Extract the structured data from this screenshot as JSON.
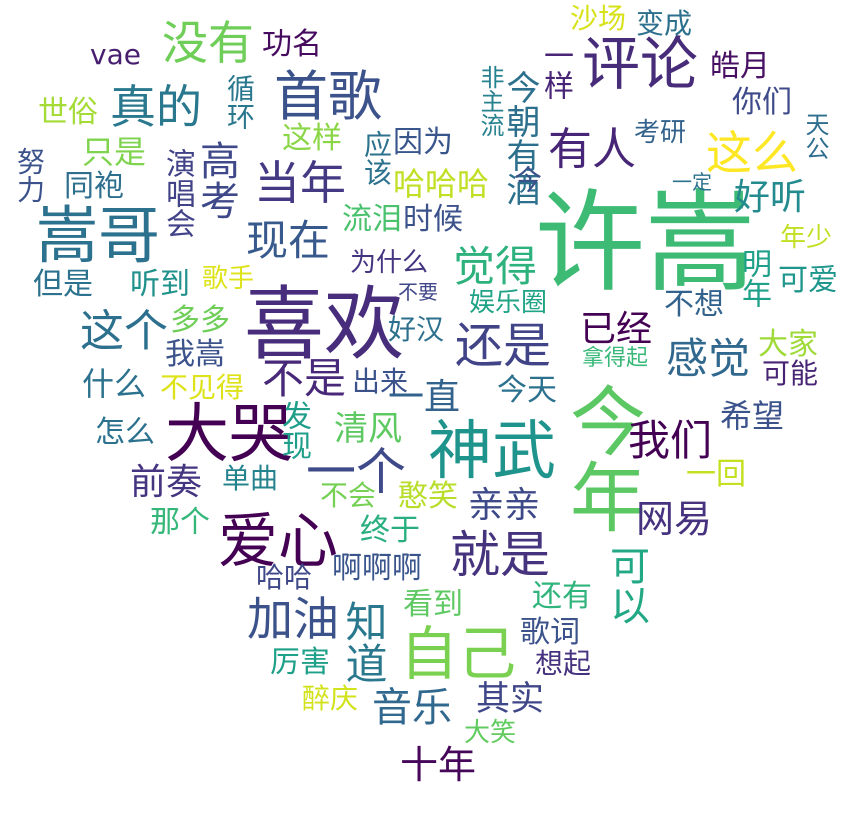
{
  "words": [
    {
      "text": "许嵩",
      "color": "#3dbb74"
    },
    {
      "text": "今年",
      "color": "#5cc863"
    },
    {
      "text": "喜欢",
      "color": "#472d7b"
    },
    {
      "text": "神武",
      "color": "#1f948c"
    },
    {
      "text": "大哭",
      "color": "#440154"
    },
    {
      "text": "嵩哥",
      "color": "#2c728e"
    },
    {
      "text": "评论",
      "color": "#472c7a"
    },
    {
      "text": "首歌",
      "color": "#3b528b"
    },
    {
      "text": "爱心",
      "color": "#440154"
    },
    {
      "text": "自己",
      "color": "#7ad151"
    },
    {
      "text": "一个",
      "color": "#3e4a89"
    },
    {
      "text": "当年",
      "color": "#443983"
    },
    {
      "text": "真的",
      "color": "#2a788e"
    },
    {
      "text": "没有",
      "color": "#6ece58"
    },
    {
      "text": "这么",
      "color": "#fde725"
    },
    {
      "text": "就是",
      "color": "#46337e"
    },
    {
      "text": "现在",
      "color": "#38598c"
    },
    {
      "text": "还是",
      "color": "#414487"
    },
    {
      "text": "有人",
      "color": "#482677"
    },
    {
      "text": "觉得",
      "color": "#2db27d"
    },
    {
      "text": "感觉",
      "color": "#31688e"
    },
    {
      "text": "我们",
      "color": "#440154"
    },
    {
      "text": "加油",
      "color": "#3b528b"
    },
    {
      "text": "知道",
      "color": "#2a788e"
    },
    {
      "text": "这个",
      "color": "#2d708e"
    },
    {
      "text": "不是",
      "color": "#482878"
    },
    {
      "text": "好听",
      "color": "#238a8d"
    },
    {
      "text": "亲亲",
      "color": "#3e4989"
    },
    {
      "text": "网易",
      "color": "#46327e"
    },
    {
      "text": "可以",
      "color": "#22a884"
    },
    {
      "text": "音乐",
      "color": "#31688e"
    },
    {
      "text": "前奏",
      "color": "#453581"
    },
    {
      "text": "高考",
      "color": "#3f4889"
    },
    {
      "text": "十年",
      "color": "#46075a"
    },
    {
      "text": "一直",
      "color": "#33638d"
    },
    {
      "text": "已经",
      "color": "#440154"
    },
    {
      "text": "希望",
      "color": "#3b528b"
    },
    {
      "text": "清风",
      "color": "#5ec962"
    },
    {
      "text": "其实",
      "color": "#3f4788"
    },
    {
      "text": "今朝有酒",
      "color": "#2d708e"
    },
    {
      "text": "一样",
      "color": "#482576"
    },
    {
      "text": "不见得",
      "color": "#dde318"
    },
    {
      "text": "哈哈哈",
      "color": "#c0df25"
    },
    {
      "text": "循环",
      "color": "#2a788e"
    },
    {
      "text": "功名",
      "color": "#460b5e"
    },
    {
      "text": "vae",
      "color": "#481f70"
    },
    {
      "text": "世俗",
      "color": "#a5db36"
    },
    {
      "text": "只是",
      "color": "#7fd34e"
    },
    {
      "text": "同袍",
      "color": "#2e6f8e"
    },
    {
      "text": "演唱会",
      "color": "#414287"
    },
    {
      "text": "努力",
      "color": "#3b528b"
    },
    {
      "text": "但是",
      "color": "#2c728e"
    },
    {
      "text": "听到",
      "color": "#21918c"
    },
    {
      "text": "歌手",
      "color": "#dde318"
    },
    {
      "text": "多多",
      "color": "#6ece58"
    },
    {
      "text": "我嵩",
      "color": "#3b528b"
    },
    {
      "text": "什么",
      "color": "#2c728e"
    },
    {
      "text": "怎么",
      "color": "#2c728e"
    },
    {
      "text": "发现",
      "color": "#1f9e89"
    },
    {
      "text": "单曲",
      "color": "#25838e"
    },
    {
      "text": "那个",
      "color": "#35b779"
    },
    {
      "text": "不会",
      "color": "#75d054"
    },
    {
      "text": "憨笑",
      "color": "#b8de29"
    },
    {
      "text": "终于",
      "color": "#29af7f"
    },
    {
      "text": "啊啊啊",
      "color": "#39558c"
    },
    {
      "text": "哈哈",
      "color": "#3f4889"
    },
    {
      "text": "厉害",
      "color": "#1fa088"
    },
    {
      "text": "看到",
      "color": "#5ec962"
    },
    {
      "text": "醉庆",
      "color": "#d2e21b"
    },
    {
      "text": "大笑",
      "color": "#62cb5f"
    },
    {
      "text": "还有",
      "color": "#2fb47c"
    },
    {
      "text": "歌词",
      "color": "#3b528b"
    },
    {
      "text": "想起",
      "color": "#46327e"
    },
    {
      "text": "出来",
      "color": "#3b528b"
    },
    {
      "text": "今天",
      "color": "#2c728e"
    },
    {
      "text": "好汉",
      "color": "#2d708e"
    },
    {
      "text": "娱乐圈",
      "color": "#20a386"
    },
    {
      "text": "不要",
      "color": "#3f4788"
    },
    {
      "text": "为什么",
      "color": "#453581"
    },
    {
      "text": "流泪",
      "color": "#4ac16d"
    },
    {
      "text": "时候",
      "color": "#3b528b"
    },
    {
      "text": "应该",
      "color": "#2c728e"
    },
    {
      "text": "因为",
      "color": "#39568c"
    },
    {
      "text": "这样",
      "color": "#8bd646"
    },
    {
      "text": "非主流",
      "color": "#26828e"
    },
    {
      "text": "今",
      "color": "#3b528b"
    },
    {
      "text": "考研",
      "color": "#33638d"
    },
    {
      "text": "皓月",
      "color": "#471063"
    },
    {
      "text": "你们",
      "color": "#3e4a89"
    },
    {
      "text": "天公",
      "color": "#2e6e8e"
    },
    {
      "text": "一定",
      "color": "#2c728e"
    },
    {
      "text": "年少",
      "color": "#c2df23"
    },
    {
      "text": "明年",
      "color": "#1fa088"
    },
    {
      "text": "可爱",
      "color": "#1f968b"
    },
    {
      "text": "不想",
      "color": "#33638d"
    },
    {
      "text": "大家",
      "color": "#a0da39"
    },
    {
      "text": "可能",
      "color": "#482475"
    },
    {
      "text": "一回",
      "color": "#c5e021"
    },
    {
      "text": "拿得起",
      "color": "#37b878"
    },
    {
      "text": "沙场",
      "color": "#d8e219"
    },
    {
      "text": "变成",
      "color": "#2d708e"
    }
  ]
}
